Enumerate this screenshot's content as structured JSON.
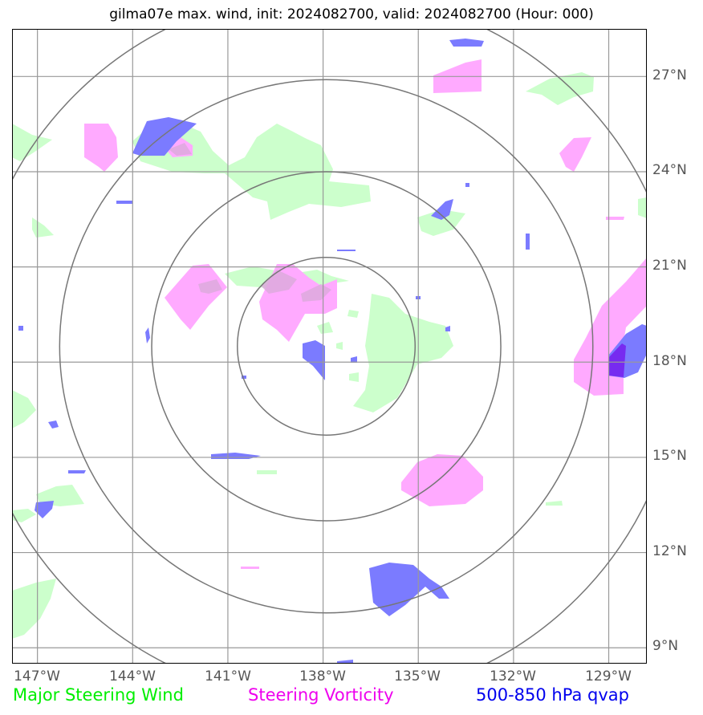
{
  "title": "gilma07e max. wind, init: 2024082700, valid: 2024082700 (Hour: 000)",
  "lon_labels": [
    "147°W",
    "144°W",
    "141°W",
    "138°W",
    "135°W",
    "132°W",
    "129°W"
  ],
  "lat_labels": [
    "27°N",
    "24°N",
    "21°N",
    "18°N",
    "15°N",
    "12°N",
    "9°N"
  ],
  "legend": {
    "wind": "Major Steering Wind",
    "vorticity": "Steering Vorticity",
    "qvap": "500-850 hPa qvap"
  },
  "colors": {
    "wind": "#00ee00",
    "vorticity": "#ee00ee",
    "qvap": "#0000ee",
    "wind_fill": "#ccffcc",
    "vorticity_fill": "#ffaaff",
    "qvap_fill": "#7b7bff",
    "grid": "#999999",
    "ring": "#777777"
  },
  "map": {
    "center": {
      "lon": -137.9,
      "lat": 18.5
    },
    "ring_radii_deg": [
      2.8,
      5.5,
      8.4,
      11.2
    ],
    "extent": {
      "lon_min": -147.8,
      "lon_max": -127.8,
      "lat_min": 8.5,
      "lat_max": 28.5
    }
  }
}
